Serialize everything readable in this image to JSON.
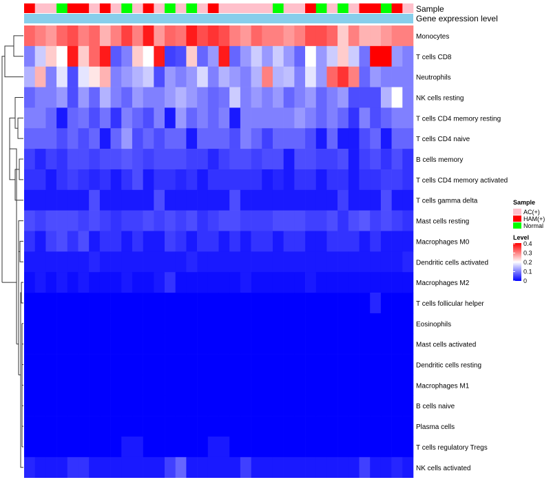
{
  "chart_data": {
    "type": "heatmap",
    "annotation_labels": {
      "sample": "Sample",
      "gene_expression": "Gene expression level"
    },
    "rows": [
      "Monocytes",
      "T cells CD8",
      "Neutrophils",
      "NK cells resting",
      "T cells CD4 memory resting",
      "T cells CD4 naive",
      "B cells memory",
      "T cells CD4 memory activated",
      "T cells gamma delta",
      "Mast cells resting",
      "Macrophages M0",
      "Dendritic cells activated",
      "Macrophages M2",
      "T cells follicular helper",
      "Eosinophils",
      "Mast cells activated",
      "Dendritic cells resting",
      "Macrophages M1",
      "B cells naive",
      "Plasma cells",
      "T cells regulatory  Tregs",
      "NK cells activated"
    ],
    "samples": [
      "HAM(+)",
      "AC(+)",
      "AC(+)",
      "Normal",
      "HAM(+)",
      "HAM(+)",
      "AC(+)",
      "HAM(+)",
      "AC(+)",
      "Normal",
      "AC(+)",
      "HAM(+)",
      "AC(+)",
      "Normal",
      "AC(+)",
      "Normal",
      "AC(+)",
      "HAM(+)",
      "AC(+)",
      "AC(+)",
      "AC(+)",
      "AC(+)",
      "AC(+)",
      "Normal",
      "AC(+)",
      "AC(+)",
      "HAM(+)",
      "Normal",
      "AC(+)",
      "Normal",
      "AC(+)",
      "HAM(+)",
      "HAM(+)",
      "Normal",
      "HAM(+)",
      "AC(+)"
    ],
    "sample_colors": {
      "AC(+)": "#FFC0CB",
      "HAM(+)": "#FF0000",
      "Normal": "#00FF00"
    },
    "gene_expression_color": "#87CEEB",
    "values": [
      [
        0.32,
        0.3,
        0.28,
        0.32,
        0.34,
        0.3,
        0.32,
        0.26,
        0.3,
        0.35,
        0.3,
        0.38,
        0.28,
        0.32,
        0.31,
        0.38,
        0.34,
        0.36,
        0.34,
        0.3,
        0.28,
        0.32,
        0.3,
        0.3,
        0.28,
        0.3,
        0.34,
        0.34,
        0.32,
        0.24,
        0.3,
        0.26,
        0.26,
        0.28,
        0.3,
        0.3
      ],
      [
        0.1,
        0.16,
        0.24,
        0.2,
        0.38,
        0.24,
        0.32,
        0.38,
        0.07,
        0.1,
        0.24,
        0.2,
        0.38,
        0.05,
        0.06,
        0.24,
        0.08,
        0.12,
        0.38,
        0.08,
        0.12,
        0.16,
        0.12,
        0.16,
        0.12,
        0.08,
        0.2,
        0.12,
        0.16,
        0.24,
        0.16,
        0.09,
        0.4,
        0.4,
        0.12,
        0.1
      ],
      [
        0.14,
        0.26,
        0.1,
        0.18,
        0.06,
        0.18,
        0.22,
        0.26,
        0.1,
        0.12,
        0.14,
        0.16,
        0.06,
        0.12,
        0.1,
        0.12,
        0.17,
        0.1,
        0.14,
        0.12,
        0.1,
        0.14,
        0.3,
        0.14,
        0.15,
        0.1,
        0.18,
        0.12,
        0.32,
        0.36,
        0.3,
        0.08,
        0.12,
        0.1,
        0.1,
        0.1
      ],
      [
        0.08,
        0.1,
        0.1,
        0.12,
        0.06,
        0.12,
        0.08,
        0.14,
        0.1,
        0.08,
        0.12,
        0.1,
        0.1,
        0.12,
        0.14,
        0.12,
        0.1,
        0.08,
        0.09,
        0.16,
        0.1,
        0.12,
        0.1,
        0.12,
        0.08,
        0.1,
        0.12,
        0.08,
        0.1,
        0.12,
        0.06,
        0.06,
        0.06,
        0.14,
        0.2,
        0.1
      ],
      [
        0.1,
        0.1,
        0.08,
        0.02,
        0.08,
        0.09,
        0.06,
        0.09,
        0.04,
        0.1,
        0.08,
        0.06,
        0.1,
        0.02,
        0.12,
        0.08,
        0.1,
        0.08,
        0.1,
        0.02,
        0.1,
        0.1,
        0.1,
        0.1,
        0.1,
        0.12,
        0.1,
        0.08,
        0.1,
        0.08,
        0.04,
        0.1,
        0.06,
        0.08,
        0.1,
        0.1
      ],
      [
        0.08,
        0.08,
        0.08,
        0.06,
        0.08,
        0.06,
        0.08,
        0.02,
        0.08,
        0.12,
        0.06,
        0.08,
        0.06,
        0.08,
        0.08,
        0.02,
        0.08,
        0.08,
        0.08,
        0.06,
        0.1,
        0.08,
        0.05,
        0.08,
        0.08,
        0.08,
        0.06,
        0.02,
        0.08,
        0.02,
        0.02,
        0.06,
        0.08,
        0.02,
        0.08,
        0.08
      ],
      [
        0.05,
        0.03,
        0.05,
        0.04,
        0.06,
        0.06,
        0.05,
        0.06,
        0.06,
        0.07,
        0.06,
        0.05,
        0.06,
        0.06,
        0.06,
        0.05,
        0.05,
        0.03,
        0.05,
        0.06,
        0.06,
        0.05,
        0.06,
        0.06,
        0.02,
        0.06,
        0.06,
        0.05,
        0.05,
        0.06,
        0.02,
        0.05,
        0.06,
        0.04,
        0.06,
        0.04
      ],
      [
        0.04,
        0.04,
        0.02,
        0.04,
        0.05,
        0.04,
        0.03,
        0.04,
        0.02,
        0.04,
        0.06,
        0.02,
        0.04,
        0.04,
        0.03,
        0.04,
        0.02,
        0.04,
        0.04,
        0.04,
        0.04,
        0.04,
        0.02,
        0.03,
        0.02,
        0.04,
        0.04,
        0.02,
        0.04,
        0.04,
        0.02,
        0.04,
        0.04,
        0.05,
        0.05,
        0.04
      ],
      [
        0.02,
        0.02,
        0.02,
        0.02,
        0.02,
        0.02,
        0.06,
        0.02,
        0.02,
        0.02,
        0.02,
        0.02,
        0.06,
        0.02,
        0.02,
        0.02,
        0.02,
        0.02,
        0.02,
        0.06,
        0.02,
        0.02,
        0.02,
        0.02,
        0.02,
        0.02,
        0.02,
        0.02,
        0.02,
        0.05,
        0.02,
        0.02,
        0.02,
        0.06,
        0.02,
        0.02
      ],
      [
        0.06,
        0.05,
        0.06,
        0.06,
        0.06,
        0.05,
        0.06,
        0.05,
        0.04,
        0.05,
        0.05,
        0.06,
        0.05,
        0.06,
        0.05,
        0.06,
        0.04,
        0.05,
        0.06,
        0.06,
        0.05,
        0.05,
        0.05,
        0.06,
        0.06,
        0.06,
        0.05,
        0.05,
        0.06,
        0.04,
        0.06,
        0.07,
        0.05,
        0.06,
        0.05,
        0.04
      ],
      [
        0.04,
        0.02,
        0.05,
        0.06,
        0.04,
        0.06,
        0.02,
        0.04,
        0.04,
        0.02,
        0.04,
        0.02,
        0.02,
        0.05,
        0.04,
        0.02,
        0.04,
        0.04,
        0.02,
        0.04,
        0.02,
        0.04,
        0.04,
        0.02,
        0.04,
        0.04,
        0.02,
        0.02,
        0.04,
        0.04,
        0.04,
        0.02,
        0.04,
        0.02,
        0.02,
        0.02
      ],
      [
        0.02,
        0.02,
        0.02,
        0.02,
        0.02,
        0.02,
        0.03,
        0.02,
        0.02,
        0.02,
        0.02,
        0.02,
        0.02,
        0.02,
        0.02,
        0.03,
        0.02,
        0.02,
        0.02,
        0.02,
        0.02,
        0.02,
        0.02,
        0.02,
        0.02,
        0.02,
        0.02,
        0.02,
        0.02,
        0.02,
        0.02,
        0.02,
        0.02,
        0.02,
        0.02,
        0.03
      ],
      [
        0.01,
        0.02,
        0.01,
        0.02,
        0.01,
        0.02,
        0.01,
        0.01,
        0.01,
        0.02,
        0.01,
        0.01,
        0.02,
        0.04,
        0.01,
        0.01,
        0.01,
        0.01,
        0.01,
        0.01,
        0.02,
        0.01,
        0.01,
        0.01,
        0.01,
        0.01,
        0.02,
        0.01,
        0.01,
        0.01,
        0.01,
        0.01,
        0.01,
        0.01,
        0.01,
        0.01
      ],
      [
        0.0,
        0.0,
        0.0,
        0.0,
        0.0,
        0.0,
        0.0,
        0.0,
        0.0,
        0.0,
        0.0,
        0.0,
        0.0,
        0.0,
        0.0,
        0.0,
        0.0,
        0.0,
        0.0,
        0.0,
        0.0,
        0.0,
        0.0,
        0.0,
        0.0,
        0.0,
        0.0,
        0.0,
        0.0,
        0.0,
        0.0,
        0.0,
        0.03,
        0.0,
        0.0,
        0.0
      ],
      [
        0,
        0,
        0,
        0,
        0,
        0,
        0,
        0,
        0,
        0,
        0,
        0,
        0,
        0,
        0,
        0,
        0,
        0,
        0,
        0,
        0,
        0,
        0,
        0,
        0,
        0,
        0,
        0,
        0,
        0,
        0,
        0,
        0,
        0,
        0,
        0
      ],
      [
        0,
        0,
        0,
        0,
        0,
        0,
        0,
        0,
        0,
        0,
        0,
        0,
        0,
        0,
        0,
        0,
        0,
        0,
        0,
        0,
        0,
        0,
        0,
        0,
        0,
        0,
        0,
        0,
        0,
        0,
        0,
        0,
        0,
        0,
        0,
        0
      ],
      [
        0,
        0,
        0,
        0,
        0,
        0,
        0,
        0,
        0,
        0,
        0,
        0,
        0,
        0,
        0,
        0,
        0,
        0,
        0,
        0,
        0,
        0,
        0,
        0,
        0,
        0,
        0,
        0,
        0,
        0,
        0,
        0,
        0,
        0,
        0,
        0
      ],
      [
        0,
        0,
        0,
        0,
        0,
        0,
        0,
        0,
        0,
        0,
        0,
        0,
        0,
        0,
        0,
        0,
        0,
        0,
        0,
        0,
        0,
        0,
        0,
        0,
        0,
        0,
        0,
        0,
        0,
        0,
        0,
        0,
        0,
        0,
        0,
        0
      ],
      [
        0,
        0,
        0,
        0,
        0,
        0,
        0,
        0,
        0,
        0,
        0,
        0,
        0,
        0,
        0,
        0,
        0,
        0,
        0,
        0,
        0,
        0,
        0,
        0,
        0,
        0,
        0,
        0,
        0,
        0,
        0,
        0,
        0,
        0,
        0,
        0
      ],
      [
        0,
        0,
        0,
        0,
        0,
        0,
        0,
        0,
        0,
        0,
        0,
        0,
        0,
        0,
        0,
        0,
        0,
        0,
        0,
        0,
        0,
        0,
        0,
        0,
        0,
        0,
        0,
        0,
        0,
        0,
        0,
        0,
        0,
        0,
        0,
        0
      ],
      [
        0,
        0,
        0,
        0,
        0,
        0,
        0,
        0,
        0,
        0.02,
        0.02,
        0,
        0,
        0,
        0,
        0,
        0,
        0.02,
        0.02,
        0,
        0,
        0,
        0,
        0,
        0,
        0,
        0,
        0,
        0,
        0,
        0,
        0,
        0,
        0,
        0,
        0
      ],
      [
        0.03,
        0.02,
        0.02,
        0.02,
        0.04,
        0.04,
        0.02,
        0.02,
        0.02,
        0.02,
        0.02,
        0.02,
        0.02,
        0.05,
        0.08,
        0.02,
        0.02,
        0.02,
        0.02,
        0.02,
        0.05,
        0.02,
        0.02,
        0.02,
        0.02,
        0.02,
        0.02,
        0.02,
        0.02,
        0.02,
        0.02,
        0.05,
        0.02,
        0.02,
        0.03,
        0.02
      ]
    ],
    "legend": {
      "sample_title": "Sample",
      "sample_items": [
        "AC(+)",
        "HAM(+)",
        "Normal"
      ],
      "level_title": "Level",
      "level_ticks": [
        "0.4",
        "0.3",
        "0.2",
        "0.1",
        "0"
      ],
      "level_range": [
        0,
        0.4
      ],
      "color_low": "#0000FF",
      "color_mid": "#FFFFFF",
      "color_high": "#FF0000",
      "placement": "right"
    }
  }
}
